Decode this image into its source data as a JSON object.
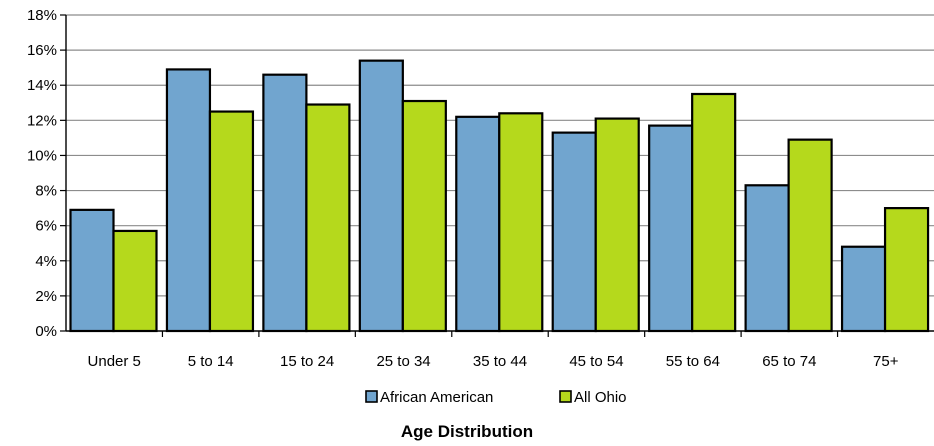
{
  "chart_data": {
    "type": "bar",
    "title": "Age Distribution",
    "xlabel": "",
    "ylabel": "",
    "categories": [
      "Under 5",
      "5 to 14",
      "15 to 24",
      "25 to 34",
      "35 to 44",
      "45 to 54",
      "55 to 64",
      "65 to 74",
      "75+"
    ],
    "series": [
      {
        "name": "African American",
        "color": "#71a5cf",
        "values": [
          6.9,
          14.9,
          14.6,
          15.4,
          12.2,
          11.3,
          11.7,
          8.3,
          4.8
        ]
      },
      {
        "name": "All Ohio",
        "color": "#b5d91c",
        "values": [
          5.7,
          12.5,
          12.9,
          13.1,
          12.4,
          12.1,
          13.5,
          10.9,
          7.0
        ]
      }
    ],
    "ylim": [
      0,
      18
    ],
    "y_ticks": [
      "0%",
      "2%",
      "4%",
      "6%",
      "8%",
      "10%",
      "12%",
      "14%",
      "16%",
      "18%"
    ],
    "grid": true,
    "legend_position": "bottom"
  }
}
